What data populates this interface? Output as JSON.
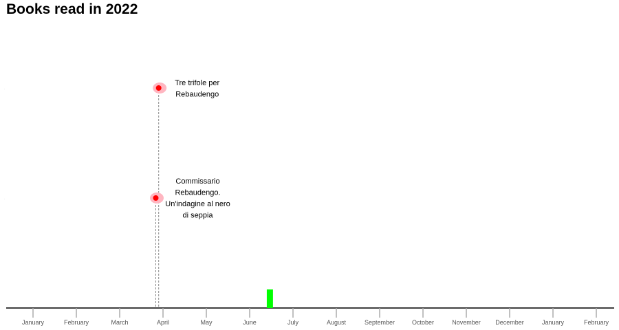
{
  "chart_data": {
    "type": "timeline",
    "title": "Books read in 2022",
    "x_axis": {
      "range": [
        "2022-01-01",
        "2023-02-28"
      ],
      "tick_labels": [
        "January",
        "February",
        "March",
        "April",
        "May",
        "June",
        "July",
        "August",
        "September",
        "October",
        "November",
        "December",
        "January",
        "February"
      ]
    },
    "books": [
      {
        "title_lines": [
          "Tre trifole per",
          "Rebaudengo"
        ],
        "date": "2022-04-13"
      },
      {
        "title_lines": [
          "Commissario",
          "Rebaudengo.",
          "Un'indagine al nero",
          "di seppia"
        ],
        "date": "2022-04-11"
      }
    ],
    "marker": {
      "date": "2022-06-30"
    },
    "colors": {
      "point": "#ff0000",
      "point_halo": "#ffb6c1",
      "marker_bar": "#00ff00",
      "axis": "#000000",
      "stem": "#888888"
    }
  }
}
